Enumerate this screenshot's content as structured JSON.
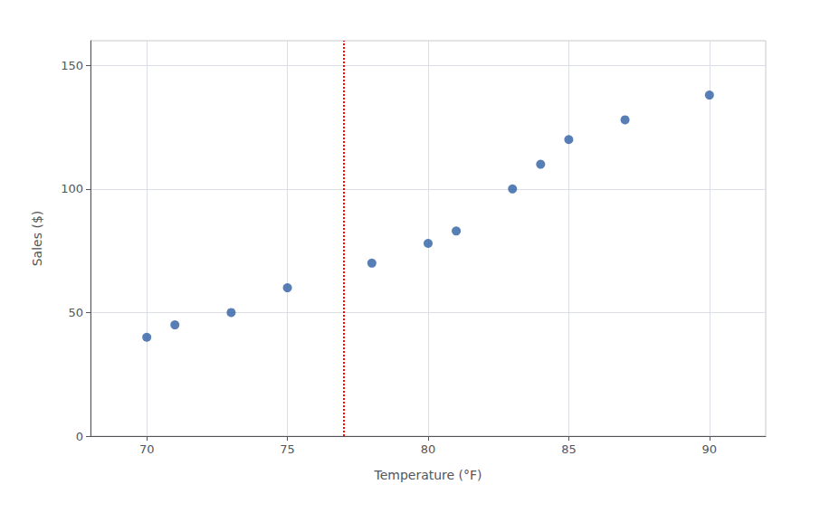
{
  "chart_data": {
    "type": "scatter",
    "x": [
      70,
      71,
      73,
      75,
      78,
      80,
      81,
      83,
      84,
      85,
      87,
      90
    ],
    "values": [
      40,
      45,
      50,
      60,
      70,
      78,
      83,
      100,
      110,
      120,
      128,
      138
    ],
    "color": "#2E5FA3",
    "xlabel": "Temperature (°F)",
    "ylabel": "Sales ($)",
    "xlim": [
      68,
      92
    ],
    "ylim": [
      0,
      160
    ],
    "xticks": [
      70,
      75,
      80,
      85,
      90
    ],
    "yticks": [
      0,
      50,
      100,
      150
    ],
    "vline_x": 77,
    "vline_color": "#FF0000",
    "grid": true
  }
}
